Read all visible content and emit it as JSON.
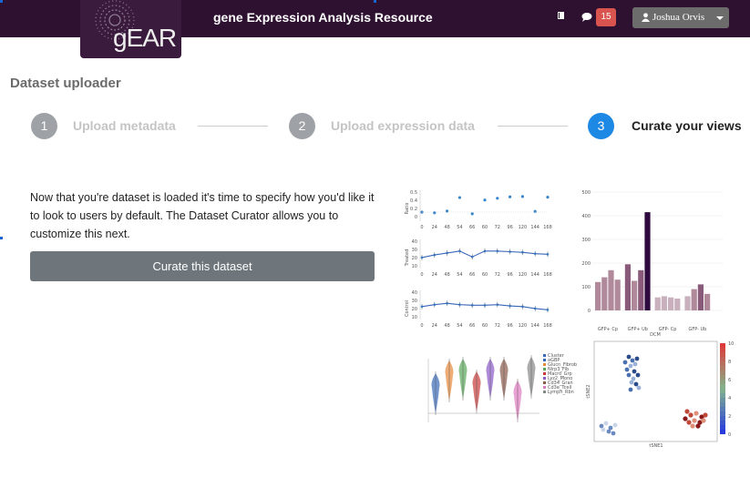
{
  "header": {
    "logo_text": "gEAR",
    "app_title": "gene Expression Analysis Resource",
    "notification_count": "15",
    "user_name": "Joshua Orvis",
    "icons": [
      "book-icon",
      "chat-icon",
      "user-icon",
      "caret-down-icon"
    ],
    "colors": {
      "bar": "#2e1030",
      "badge": "#d9534f",
      "user_button": "#6c6c6c"
    }
  },
  "page": {
    "title": "Dataset uploader"
  },
  "steps": [
    {
      "number": "1",
      "label": "Upload metadata",
      "state": "complete"
    },
    {
      "number": "2",
      "label": "Upload expression data",
      "state": "complete"
    },
    {
      "number": "3",
      "label": "Curate your views",
      "state": "active"
    }
  ],
  "main": {
    "description": "Now that you're dataset is loaded it's time to specify how you'd like it to look to users by default. The Dataset Curator allows you to customize this next.",
    "curate_button": "Curate this dataset"
  },
  "previews": {
    "line_panel": {
      "x_ticks": [
        "0",
        "24",
        "48",
        "54",
        "66",
        "60",
        "72",
        "96",
        "120",
        "144",
        "168"
      ],
      "ratio_label": "Ratio",
      "treated_label": "Treated",
      "control_label": "Control",
      "ratio_ticks": [
        "0.5",
        "0.4",
        "0.2",
        "0"
      ],
      "ratio_values": [
        0.0,
        -0.02,
        0.03,
        0.42,
        -0.05,
        0.35,
        0.4,
        0.44,
        0.45,
        0.02,
        0.43
      ],
      "treated_values": [
        17,
        21,
        24,
        27,
        18,
        27,
        27,
        26,
        25,
        23,
        22
      ],
      "control_values": [
        20,
        23,
        25,
        23,
        22,
        22,
        23,
        21,
        20,
        17,
        15
      ]
    },
    "bar_panel": {
      "y_ticks": [
        "500",
        "400",
        "300",
        "200",
        "100",
        "0"
      ],
      "xlabel": "DCM",
      "group_labels": [
        "GFP+ Cp",
        "GFP+ Ub",
        "GFP- Cp",
        "GFP- Ub"
      ],
      "values": [
        120,
        140,
        170,
        130,
        195,
        125,
        170,
        415,
        55,
        60,
        55,
        50,
        60,
        90,
        110,
        70
      ]
    },
    "violin_panel": {
      "legend": [
        "Cluster",
        "aGBP",
        "Glucn_Fibrob",
        "Nlrp3_Fib",
        "Macro_Grp",
        "Lyz2_Mono",
        "Cd34_Gran",
        "Cd3e_Tcell",
        "Lymph_Rbn"
      ]
    },
    "scatter_panel": {
      "xlabel": "tSNE1",
      "ylabel": "tSNE2",
      "colorbar_ticks": [
        "10",
        "8",
        "6",
        "4",
        "2",
        "0"
      ]
    }
  }
}
